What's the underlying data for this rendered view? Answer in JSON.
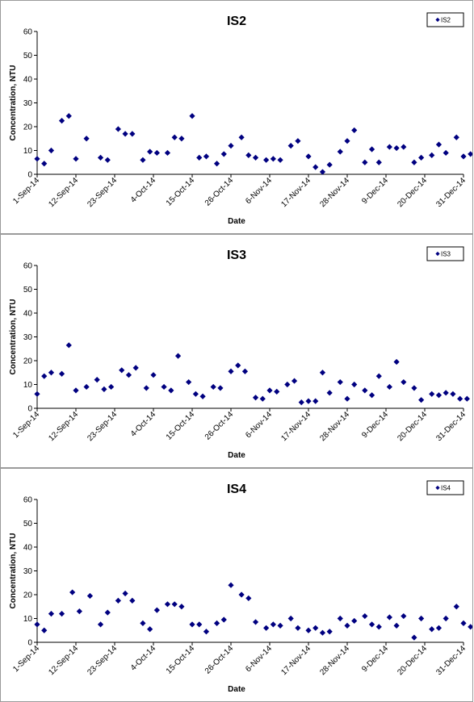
{
  "chart_data": [
    {
      "type": "scatter",
      "title": "IS2",
      "xlabel": "Date",
      "ylabel": "Concentration, NTU",
      "ylim": [
        0,
        60
      ],
      "yticks": [
        0,
        10,
        20,
        30,
        40,
        50,
        60
      ],
      "xlim": [
        "2014-09-01",
        "2014-12-31"
      ],
      "xtick_labels": [
        "1-Sep-14",
        "12-Sep-14",
        "23-Sep-14",
        "4-Oct-14",
        "15-Oct-14",
        "26-Oct-14",
        "6-Nov-14",
        "17-Nov-14",
        "28-Nov-14",
        "9-Dec-14",
        "20-Dec-14",
        "31-Dec-14"
      ],
      "legend": "top-right",
      "grid": false,
      "marker_color": "#000080",
      "series": [
        {
          "name": "IS2",
          "x": [
            "2014-09-01",
            "2014-09-03",
            "2014-09-05",
            "2014-09-08",
            "2014-09-10",
            "2014-09-12",
            "2014-09-15",
            "2014-09-19",
            "2014-09-21",
            "2014-09-24",
            "2014-09-26",
            "2014-09-28",
            "2014-10-01",
            "2014-10-03",
            "2014-10-05",
            "2014-10-08",
            "2014-10-10",
            "2014-10-12",
            "2014-10-15",
            "2014-10-17",
            "2014-10-19",
            "2014-10-22",
            "2014-10-24",
            "2014-10-26",
            "2014-10-29",
            "2014-10-31",
            "2014-11-02",
            "2014-11-05",
            "2014-11-07",
            "2014-11-09",
            "2014-11-12",
            "2014-11-14",
            "2014-11-17",
            "2014-11-19",
            "2014-11-21",
            "2014-11-23",
            "2014-11-26",
            "2014-11-28",
            "2014-11-30",
            "2014-12-03",
            "2014-12-05",
            "2014-12-07",
            "2014-12-10",
            "2014-12-12",
            "2014-12-14",
            "2014-12-17",
            "2014-12-19",
            "2014-12-22",
            "2014-12-24",
            "2014-12-26",
            "2014-12-29",
            "2014-12-31",
            "2015-01-02"
          ],
          "y": [
            6.5,
            4.5,
            10,
            22.5,
            24.5,
            6.5,
            15,
            7,
            6,
            19,
            17,
            17,
            6,
            9.5,
            9,
            9,
            15.5,
            15,
            24.5,
            7,
            7.5,
            4.5,
            8.5,
            12,
            15.5,
            8,
            7,
            6,
            6.5,
            6,
            12,
            14,
            7.5,
            3,
            1,
            4,
            9.5,
            14,
            18.5,
            5,
            10.5,
            5,
            11.5,
            11,
            11.5,
            5,
            7,
            8,
            12.5,
            9,
            15.5,
            7.5,
            8.5
          ]
        }
      ]
    },
    {
      "type": "scatter",
      "title": "IS3",
      "xlabel": "Date",
      "ylabel": "Concentration, NTU",
      "ylim": [
        0,
        60
      ],
      "yticks": [
        0,
        10,
        20,
        30,
        40,
        50,
        60
      ],
      "xlim": [
        "2014-09-01",
        "2014-12-31"
      ],
      "xtick_labels": [
        "1-Sep-14",
        "12-Sep-14",
        "23-Sep-14",
        "4-Oct-14",
        "15-Oct-14",
        "26-Oct-14",
        "6-Nov-14",
        "17-Nov-14",
        "28-Nov-14",
        "9-Dec-14",
        "20-Dec-14",
        "31-Dec-14"
      ],
      "legend": "top-right",
      "grid": false,
      "marker_color": "#000080",
      "series": [
        {
          "name": "IS3",
          "x": [
            "2014-09-01",
            "2014-09-03",
            "2014-09-05",
            "2014-09-08",
            "2014-09-10",
            "2014-09-12",
            "2014-09-15",
            "2014-09-18",
            "2014-09-20",
            "2014-09-22",
            "2014-09-25",
            "2014-09-27",
            "2014-09-29",
            "2014-10-02",
            "2014-10-04",
            "2014-10-07",
            "2014-10-09",
            "2014-10-11",
            "2014-10-14",
            "2014-10-16",
            "2014-10-18",
            "2014-10-21",
            "2014-10-23",
            "2014-10-26",
            "2014-10-28",
            "2014-10-30",
            "2014-11-02",
            "2014-11-04",
            "2014-11-06",
            "2014-11-08",
            "2014-11-11",
            "2014-11-13",
            "2014-11-15",
            "2014-11-17",
            "2014-11-19",
            "2014-11-21",
            "2014-11-23",
            "2014-11-26",
            "2014-11-28",
            "2014-11-30",
            "2014-12-03",
            "2014-12-05",
            "2014-12-07",
            "2014-12-10",
            "2014-12-12",
            "2014-12-14",
            "2014-12-17",
            "2014-12-19",
            "2014-12-22",
            "2014-12-24",
            "2014-12-26",
            "2014-12-28",
            "2014-12-30",
            "2015-01-01"
          ],
          "y": [
            6,
            13.5,
            15,
            14.5,
            26.5,
            7.5,
            9,
            12,
            8,
            9,
            16,
            14,
            17,
            8.5,
            14,
            9,
            7.5,
            22,
            11,
            6,
            5,
            9,
            8.5,
            15.5,
            18,
            15.5,
            4.5,
            4,
            7.5,
            7,
            10,
            11.5,
            2.5,
            3,
            3,
            15,
            6.5,
            11,
            4,
            10,
            7.5,
            5.5,
            13.5,
            9,
            19.5,
            11,
            8.5,
            3.5,
            6,
            5.5,
            6.5,
            6,
            4,
            4
          ]
        }
      ]
    },
    {
      "type": "scatter",
      "title": "IS4",
      "xlabel": "Date",
      "ylabel": "Concentration, NTU",
      "ylim": [
        0,
        60
      ],
      "yticks": [
        0,
        10,
        20,
        30,
        40,
        50,
        60
      ],
      "xlim": [
        "2014-09-01",
        "2014-12-31"
      ],
      "xtick_labels": [
        "1-Sep-14",
        "12-Sep-14",
        "23-Sep-14",
        "4-Oct-14",
        "15-Oct-14",
        "26-Oct-14",
        "6-Nov-14",
        "17-Nov-14",
        "28-Nov-14",
        "9-Dec-14",
        "20-Dec-14",
        "31-Dec-14"
      ],
      "legend": "top-right",
      "grid": false,
      "marker_color": "#000080",
      "series": [
        {
          "name": "IS4",
          "x": [
            "2014-09-01",
            "2014-09-03",
            "2014-09-05",
            "2014-09-08",
            "2014-09-11",
            "2014-09-13",
            "2014-09-16",
            "2014-09-19",
            "2014-09-21",
            "2014-09-24",
            "2014-09-26",
            "2014-09-28",
            "2014-10-01",
            "2014-10-03",
            "2014-10-05",
            "2014-10-08",
            "2014-10-10",
            "2014-10-12",
            "2014-10-15",
            "2014-10-17",
            "2014-10-19",
            "2014-10-22",
            "2014-10-24",
            "2014-10-26",
            "2014-10-29",
            "2014-10-31",
            "2014-11-02",
            "2014-11-05",
            "2014-11-07",
            "2014-11-09",
            "2014-11-12",
            "2014-11-14",
            "2014-11-17",
            "2014-11-19",
            "2014-11-21",
            "2014-11-23",
            "2014-11-26",
            "2014-11-28",
            "2014-11-30",
            "2014-12-03",
            "2014-12-05",
            "2014-12-07",
            "2014-12-10",
            "2014-12-12",
            "2014-12-14",
            "2014-12-17",
            "2014-12-19",
            "2014-12-22",
            "2014-12-24",
            "2014-12-26",
            "2014-12-29",
            "2014-12-31",
            "2015-01-02"
          ],
          "y": [
            7.5,
            5,
            12,
            12,
            21,
            13,
            19.5,
            7.5,
            12.5,
            17.5,
            20.5,
            17.5,
            8,
            5.5,
            13.5,
            16,
            16,
            15,
            7.5,
            7.5,
            4.5,
            8,
            9.5,
            24,
            20,
            18.5,
            8.5,
            6,
            7.5,
            7,
            10,
            6,
            5,
            6,
            4,
            4.5,
            10,
            7,
            9,
            11,
            7.5,
            6.5,
            10.5,
            7,
            11,
            2,
            10,
            5.5,
            6,
            10,
            15,
            8,
            6.5
          ]
        }
      ]
    }
  ]
}
